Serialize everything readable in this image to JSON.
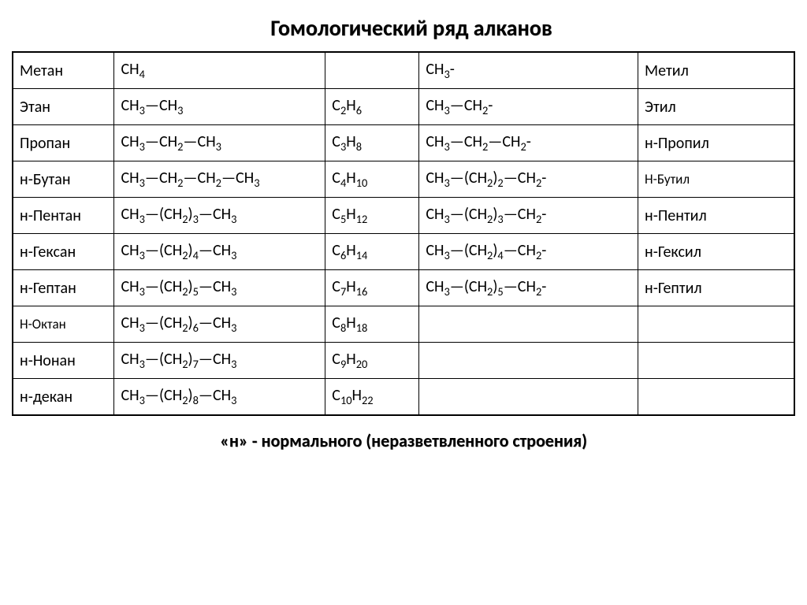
{
  "title": "Гомологический ряд алканов",
  "footnote": "«н» - нормального (неразветвленного строения)",
  "columns": [
    "name",
    "structure",
    "formula",
    "radical_structure",
    "radical_name"
  ],
  "rows": [
    {
      "name": "Метан",
      "structure": "CH_4",
      "formula": "",
      "radical_structure": "CH_3-",
      "radical_name": "Метил",
      "radical_name_size": "normal"
    },
    {
      "name": "Этан",
      "structure": "CH_3—CH_3",
      "formula": "C_2H_6",
      "radical_structure": "CH_3—CH_2-",
      "radical_name": "Этил",
      "radical_name_size": "normal"
    },
    {
      "name": "Пропан",
      "structure": "CH_3—CH_2—CH_3",
      "formula": "C_3H_8",
      "radical_structure": "CH_3—CH_2—CH_2-",
      "radical_name": "н-Пропил",
      "radical_name_size": "normal"
    },
    {
      "name": "н-Бутан",
      "structure": "CH_3—CH_2—CH_2—CH_3",
      "formula": "C_4H_10",
      "radical_structure": "CH_3—(CH_2)_2—CH_2-",
      "radical_name": "Н-Бутил",
      "radical_name_size": "small"
    },
    {
      "name": "н-Пентан",
      "structure": "CH_3—(CH_2)_3—CH_3",
      "formula": "C_5H_12",
      "radical_structure": "CH_3—(CH_2)_3—CH_2-",
      "radical_name": "н-Пентил",
      "radical_name_size": "normal"
    },
    {
      "name": "н-Гексан",
      "structure": "CH_3—(CH_2)_4—CH_3",
      "formula": "C_6H_14",
      "radical_structure": "CH_3—(CH_2)_4—CH_2-",
      "radical_name": "н-Гексил",
      "radical_name_size": "normal"
    },
    {
      "name": "н-Гептан",
      "structure": "CH_3—(CH_2)_5—CH_3",
      "formula": "C_7H_16",
      "radical_structure": "CH_3—(CH_2)_5—CH_2-",
      "radical_name": "н-Гептил",
      "radical_name_size": "normal"
    },
    {
      "name": "Н-Октан",
      "name_size": "small",
      "structure": "CH_3—(CH_2)_6—CH_3",
      "formula": "C_8H_18",
      "radical_structure": "",
      "radical_name": "",
      "radical_name_size": "normal"
    },
    {
      "name": "н-Нонан",
      "structure": "CH_3—(CH_2)_7—CH_3",
      "formula": "C_9H_20",
      "radical_structure": "",
      "radical_name": "",
      "radical_name_size": "normal"
    },
    {
      "name": "н-декан",
      "structure": "CH_3—(CH_2)_8—CH_3",
      "formula": "C_10H_22",
      "radical_structure": "",
      "radical_name": "",
      "radical_name_size": "normal"
    }
  ]
}
